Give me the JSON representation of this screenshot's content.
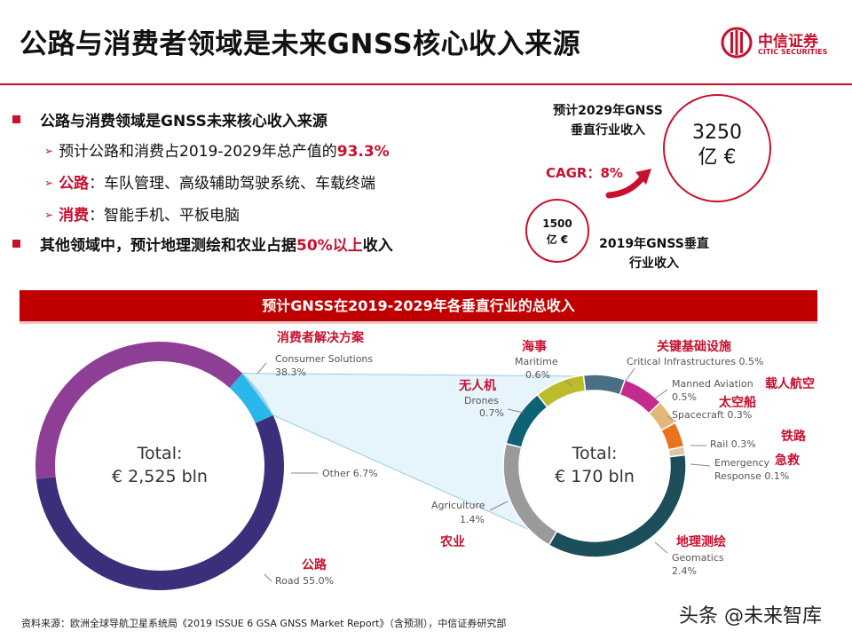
{
  "slide": {
    "title": "公路与消费者领域是未来GNSS核心收入来源",
    "logo_cn": "中信证券",
    "logo_en": "CITIC SECURITIES"
  },
  "bullets": {
    "b1": "公路与消费领域是GNSS未来核心收入来源",
    "b1_1_text": "预计公路和消费占2019-2029年总产值的",
    "b1_1_value": "93.3%",
    "b1_2_key": "公路",
    "b1_2_text": "：车队管理、高级辅助驾驶系统、车载终端",
    "b1_3_key": "消费",
    "b1_3_text": "：智能手机、平板电脑",
    "b2_text": "其他领域中，预计地理测绘和农业占据",
    "b2_value": "50%以上",
    "b2_tail": "收入"
  },
  "growth": {
    "label_2029_line1": "预计2029年GNSS",
    "label_2029_line2": "垂直行业收入",
    "value_2029_line1": "3250",
    "value_2029_line2": "亿 €",
    "cagr": "CAGR：8%",
    "value_2019_line1": "1500",
    "value_2019_line2": "亿 €",
    "label_2019_line1": "2019年GNSS垂直",
    "label_2019_line2": "行业收入"
  },
  "banner": "预计GNSS在2019-2029年各垂直行业的总收入",
  "colors": {
    "brand_red": "#c8102e",
    "road": "#3a2f7a",
    "consumer": "#8e3f95",
    "other": "#29b6e8",
    "geomatics": "#1d4f5b",
    "agriculture": "#9a9a9a",
    "drones": "#0d6275",
    "maritime": "#bcbc2a",
    "critical": "#4a6f85",
    "manned": "#c42b8f",
    "spacecraft": "#e0b878",
    "rail": "#e8731a",
    "emergency": "#d8c9a8"
  },
  "chart_data": [
    {
      "type": "pie",
      "title": "",
      "center_line1": "Total:",
      "center_line2": "€ 2,525 bln",
      "slices": [
        {
          "label": "Road",
          "cn": "公路",
          "value_text": "55.0%",
          "value": 55.0
        },
        {
          "label": "Consumer Solutions",
          "cn": "消费者解决方案",
          "value_text": "38.3%",
          "value": 38.3
        },
        {
          "label": "Other",
          "value_text": "6.7%",
          "value": 6.7
        }
      ]
    },
    {
      "type": "pie",
      "title": "",
      "center_line1": "Total:",
      "center_line2": "€ 170 bln",
      "slices": [
        {
          "label": "Geomatics",
          "cn": "地理测绘",
          "value_text": "2.4%",
          "value": 2.4
        },
        {
          "label": "Agriculture",
          "cn": "农业",
          "value_text": "1.4%",
          "value": 1.4
        },
        {
          "label": "Drones",
          "cn": "无人机",
          "value_text": "0.7%",
          "value": 0.7
        },
        {
          "label": "Maritime",
          "cn": "海事",
          "value_text": "0.6%",
          "value": 0.6
        },
        {
          "label": "Critical Infrastructures",
          "cn": "关键基础设施",
          "value_text": "0.5%",
          "value": 0.5
        },
        {
          "label": "Manned Aviation",
          "cn": "载人航空",
          "value_text": "0.5%",
          "value": 0.5
        },
        {
          "label": "Spacecraft",
          "cn": "太空船",
          "value_text": "0.3%",
          "value": 0.3
        },
        {
          "label": "Rail",
          "cn": "铁路",
          "value_text": "0.3%",
          "value": 0.3
        },
        {
          "label": "Emergency Response",
          "cn": "急救",
          "value_text": "0.1%",
          "value": 0.1
        }
      ]
    }
  ],
  "footer": {
    "source": "资料来源：欧洲全球导航卫星系统局《2019 ISSUE 6 GSA GNSS Market Report》（含预测），中信证券研究部",
    "watermark": "头条 @未来智库"
  }
}
